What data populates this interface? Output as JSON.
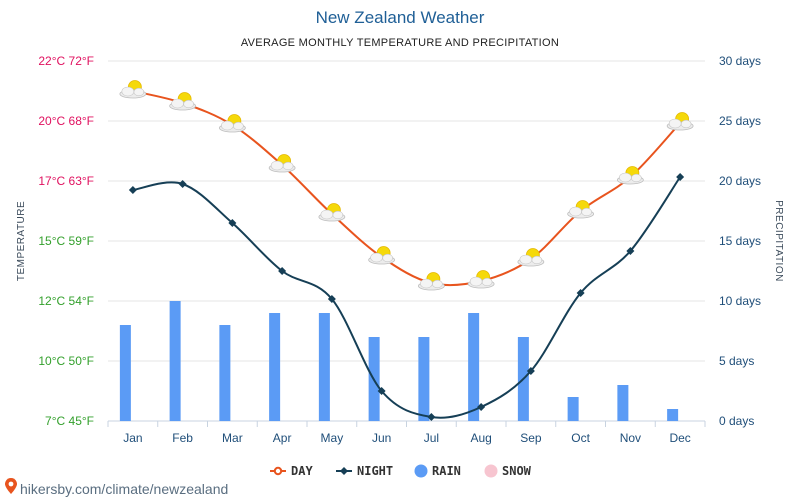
{
  "chart_data": {
    "type": "line",
    "title": "New Zealand Weather",
    "subtitle": "AVERAGE MONTHLY TEMPERATURE AND PRECIPITATION",
    "ylabel_left": "TEMPERATURE",
    "ylabel_right": "PRECIPITATION",
    "categories": [
      "Jan",
      "Feb",
      "Mar",
      "Apr",
      "May",
      "Jun",
      "Jul",
      "Aug",
      "Sep",
      "Oct",
      "Nov",
      "Dec"
    ],
    "y_left_ticks": [
      {
        "value": 7,
        "label": "7°C 45°F",
        "color": "#33a02c"
      },
      {
        "value": 10,
        "label": "10°C 50°F",
        "color": "#33a02c"
      },
      {
        "value": 12,
        "label": "12°C 54°F",
        "color": "#33a02c"
      },
      {
        "value": 15,
        "label": "15°C 59°F",
        "color": "#33a02c"
      },
      {
        "value": 17,
        "label": "17°C 63°F",
        "color": "#e0115f"
      },
      {
        "value": 20,
        "label": "20°C 68°F",
        "color": "#e0115f"
      },
      {
        "value": 22,
        "label": "22°C 72°F",
        "color": "#e0115f"
      }
    ],
    "y_right_ticks": [
      {
        "value": 0,
        "label": "0 days"
      },
      {
        "value": 5,
        "label": "5 days"
      },
      {
        "value": 10,
        "label": "10 days"
      },
      {
        "value": 15,
        "label": "15 days"
      },
      {
        "value": 20,
        "label": "20 days"
      },
      {
        "value": 25,
        "label": "25 days"
      },
      {
        "value": 30,
        "label": "30 days"
      }
    ],
    "ylim_right": [
      0,
      30
    ],
    "grid": true,
    "legend_position": "bottom-center",
    "series": [
      {
        "name": "DAY",
        "kind": "line",
        "color": "#e8541e",
        "marker": "weather-icon",
        "values": [
          21.0,
          20.6,
          19.8,
          17.8,
          15.9,
          14.2,
          12.9,
          13.0,
          14.1,
          16.0,
          17.2,
          19.9
        ]
      },
      {
        "name": "NIGHT",
        "kind": "line",
        "color": "#163f56",
        "marker": "diamond",
        "values": [
          16.7,
          16.9,
          15.6,
          13.5,
          12.1,
          8.5,
          7.2,
          7.7,
          9.5,
          12.4,
          14.5,
          17.2
        ]
      },
      {
        "name": "RAIN",
        "kind": "bar",
        "color": "#5b9bf5",
        "values": [
          8,
          10,
          8,
          9,
          9,
          7,
          7,
          9,
          7,
          2,
          3,
          1
        ]
      },
      {
        "name": "SNOW",
        "kind": "bar",
        "color": "#f7c5d0",
        "values": [
          0,
          0,
          0,
          0,
          0,
          0,
          0,
          0,
          0,
          0,
          0,
          0
        ]
      }
    ]
  },
  "source_text": "hikersby.com/climate/newzealand"
}
